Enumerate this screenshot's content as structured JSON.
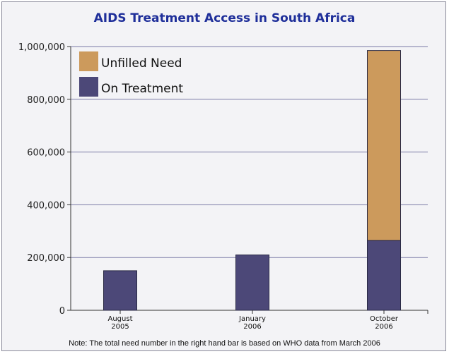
{
  "chart_data": {
    "type": "bar",
    "title": "AIDS Treatment Access in South Africa",
    "categories": [
      [
        "August",
        "2005"
      ],
      [
        "January",
        "2006"
      ],
      [
        "October",
        "2006"
      ]
    ],
    "series": [
      {
        "name": "On Treatment",
        "values": [
          150000,
          210000,
          265000
        ],
        "color": "#4c4878"
      },
      {
        "name": "Unfilled Need",
        "values": [
          0,
          0,
          720000
        ],
        "color": "#cc9a5c"
      }
    ],
    "stacked": true,
    "ylim": [
      0,
      1000000
    ],
    "yticks": [
      "0",
      "200,000",
      "400,000",
      "600,000",
      "800,000",
      "1,000,000"
    ],
    "ytick_values": [
      0,
      200000,
      400000,
      600000,
      800000,
      1000000
    ],
    "grid": true,
    "legend_position": "top-left",
    "note": "Note: The total need number in the right hand bar is based on WHO data from March 2006"
  }
}
